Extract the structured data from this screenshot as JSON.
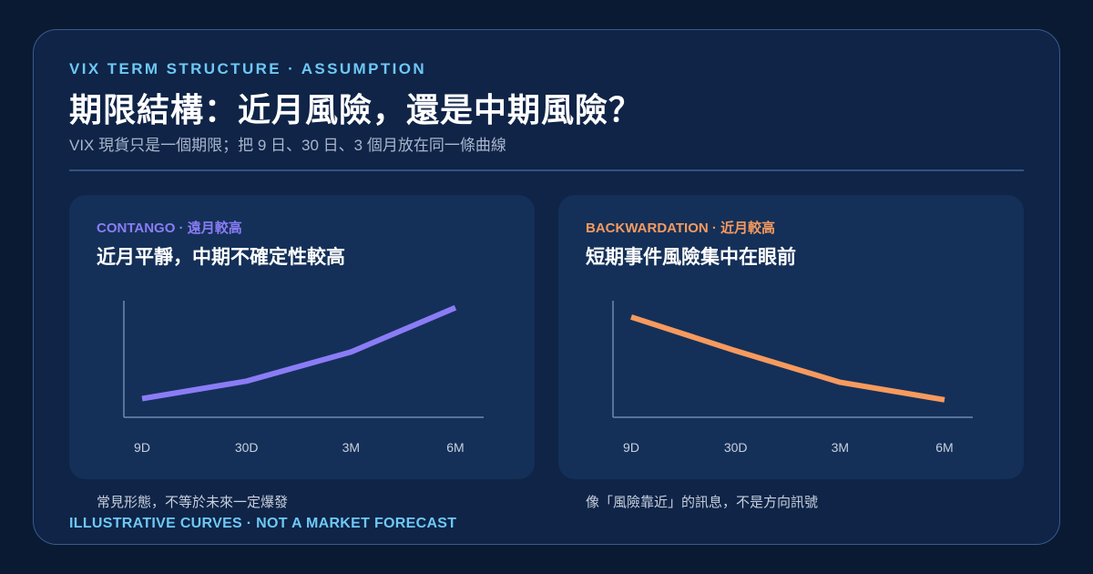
{
  "eyebrow": "VIX TERM STRUCTURE · ASSUMPTION",
  "title": "期限結構：近月風險，還是中期風險？",
  "subtitle": "VIX 現貨只是一個期限；把 9 日、30 日、3 個月放在同一條曲線",
  "footer": "ILLUSTRATIVE CURVES · NOT A MARKET FORECAST",
  "colors": {
    "contango": "#8b7cf6",
    "backwardation": "#f79a5e",
    "accent": "#6ec8f5"
  },
  "panels": [
    {
      "tag": "CONTANGO · 遠月較高",
      "headline": "近月平靜，中期不確定性較高",
      "note": "常見形態，不等於未來一定爆發"
    },
    {
      "tag": "BACKWARDATION · 近月較高",
      "headline": "短期事件風險集中在眼前",
      "note": "像「風險靠近」的訊息，不是方向訊號"
    }
  ],
  "chart_data": [
    {
      "type": "line",
      "categories": [
        "9D",
        "30D",
        "3M",
        "6M"
      ],
      "series": [
        {
          "values": [
            0.16,
            0.31,
            0.56,
            0.94
          ]
        }
      ],
      "ylim": [
        0,
        1
      ],
      "grid": false
    },
    {
      "type": "line",
      "categories": [
        "9D",
        "30D",
        "3M",
        "6M"
      ],
      "series": [
        {
          "values": [
            0.86,
            0.57,
            0.3,
            0.15
          ]
        }
      ],
      "ylim": [
        0,
        1
      ],
      "grid": false
    }
  ]
}
